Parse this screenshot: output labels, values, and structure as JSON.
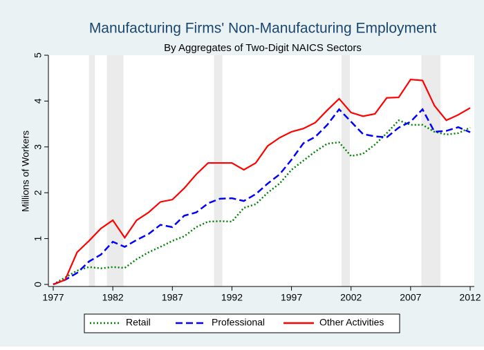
{
  "chart_data": {
    "type": "line",
    "title": "Manufacturing Firms' Non-Manufacturing Employment",
    "subtitle": "By Aggregates of Two-Digit NAICS Sectors",
    "y_label": "Millions of Workers",
    "x": [
      1977,
      1978,
      1979,
      1980,
      1981,
      1982,
      1983,
      1984,
      1985,
      1986,
      1987,
      1988,
      1989,
      1990,
      1991,
      1992,
      1993,
      1994,
      1995,
      1996,
      1997,
      1998,
      1999,
      2000,
      2001,
      2002,
      2003,
      2004,
      2005,
      2006,
      2007,
      2008,
      2009,
      2010,
      2011,
      2012
    ],
    "series": [
      {
        "name": "Retail",
        "color": "#008000",
        "dash": "2,3",
        "values": [
          0,
          0.15,
          0.3,
          0.38,
          0.35,
          0.38,
          0.36,
          0.55,
          0.7,
          0.82,
          0.95,
          1.05,
          1.25,
          1.37,
          1.38,
          1.37,
          1.67,
          1.75,
          2.0,
          2.2,
          2.5,
          2.7,
          2.9,
          3.07,
          3.1,
          2.8,
          2.85,
          3.05,
          3.3,
          3.58,
          3.48,
          3.48,
          3.33,
          3.27,
          3.3,
          3.42
        ]
      },
      {
        "name": "Professional",
        "color": "#0000ff",
        "dash": "10,5",
        "values": [
          0,
          0.1,
          0.25,
          0.5,
          0.65,
          0.93,
          0.82,
          0.97,
          1.1,
          1.3,
          1.25,
          1.5,
          1.57,
          1.77,
          1.87,
          1.88,
          1.82,
          1.97,
          2.2,
          2.4,
          2.72,
          3.08,
          3.22,
          3.48,
          3.82,
          3.55,
          3.28,
          3.23,
          3.21,
          3.42,
          3.55,
          3.82,
          3.33,
          3.35,
          3.43,
          3.32
        ]
      },
      {
        "name": "Other Activities",
        "color": "#ff0000",
        "dash": "none",
        "values": [
          0,
          0.1,
          0.7,
          0.95,
          1.22,
          1.4,
          1.02,
          1.4,
          1.57,
          1.8,
          1.85,
          2.1,
          2.4,
          2.65,
          2.65,
          2.65,
          2.5,
          2.65,
          3.02,
          3.2,
          3.33,
          3.4,
          3.53,
          3.8,
          4.05,
          3.75,
          3.67,
          3.72,
          4.07,
          4.08,
          4.47,
          4.45,
          3.9,
          3.58,
          3.7,
          3.85
        ]
      }
    ],
    "recessions": [
      [
        1980.0,
        1980.5
      ],
      [
        1981.5,
        1982.9
      ],
      [
        1990.5,
        1991.2
      ],
      [
        2001.2,
        2001.9
      ],
      [
        2007.9,
        2009.5
      ]
    ],
    "xlim": [
      1977,
      2012
    ],
    "xticks": [
      1977,
      1982,
      1987,
      1992,
      1997,
      2002,
      2007,
      2012
    ],
    "ylim": [
      0,
      5
    ],
    "yticks": [
      0,
      1,
      2,
      3,
      4,
      5
    ],
    "grid": false,
    "legend": "bottom"
  }
}
